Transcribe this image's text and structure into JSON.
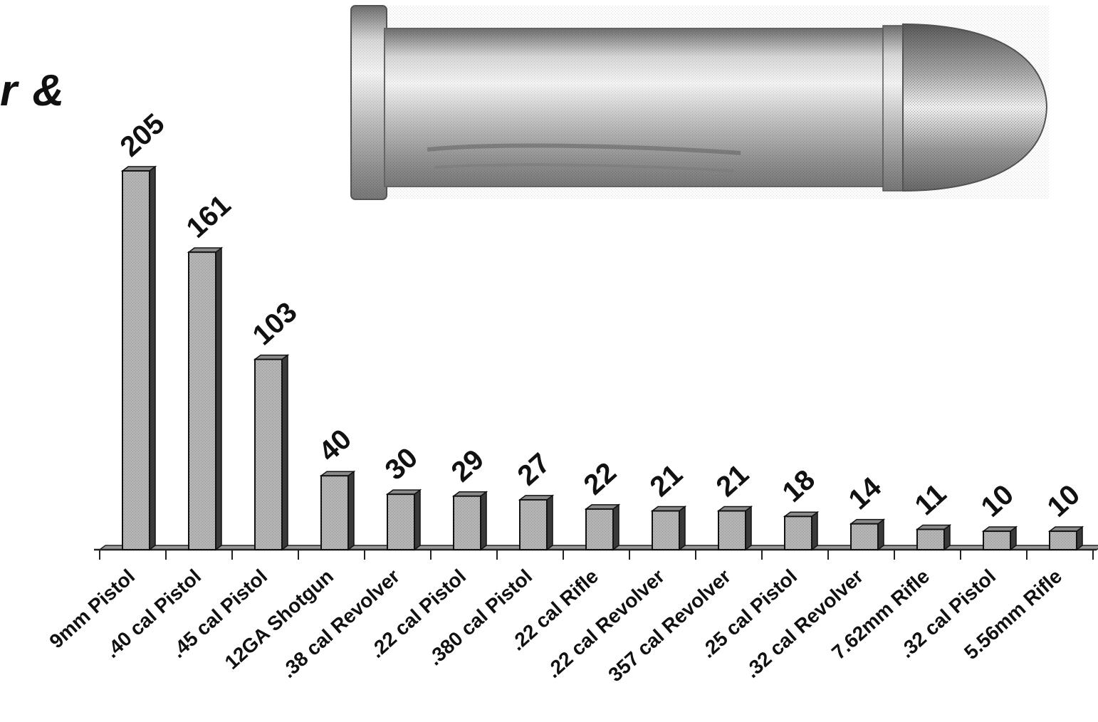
{
  "title_fragment": "r &",
  "colors": {
    "bar_front": "#b4b4b4",
    "bar_side": "#3a3a3a",
    "bar_top": "#8a8a8a",
    "axis": "#222222",
    "text": "#111111"
  },
  "chart_data": {
    "type": "bar",
    "style": "3d-column",
    "categories": [
      "9mm Pistol",
      ".40 cal Pistol",
      ".45 cal Pistol",
      "12GA Shotgun",
      ".38 cal Revolver",
      ".22 cal Pistol",
      ".380 cal Pistol",
      ".22 cal Rifle",
      ".22 cal Revolver",
      "357 cal Revolver",
      ".25 cal Pistol",
      ".32 cal Revolver",
      "7.62mm Rifle",
      ".32 cal Pistol",
      "5.56mm Rifle"
    ],
    "values": [
      205,
      161,
      103,
      40,
      30,
      29,
      27,
      22,
      21,
      21,
      18,
      14,
      11,
      10,
      10
    ],
    "data_labels": [
      "205",
      "161",
      "103",
      "40",
      "30",
      "29",
      "27",
      "22",
      "21",
      "21",
      "18",
      "14",
      "11",
      "10",
      "10"
    ],
    "ylim": [
      0,
      210
    ],
    "grid": false,
    "legend": "none",
    "xlabel": "",
    "ylabel": ""
  },
  "image": {
    "subject": "cartridge-photo"
  }
}
